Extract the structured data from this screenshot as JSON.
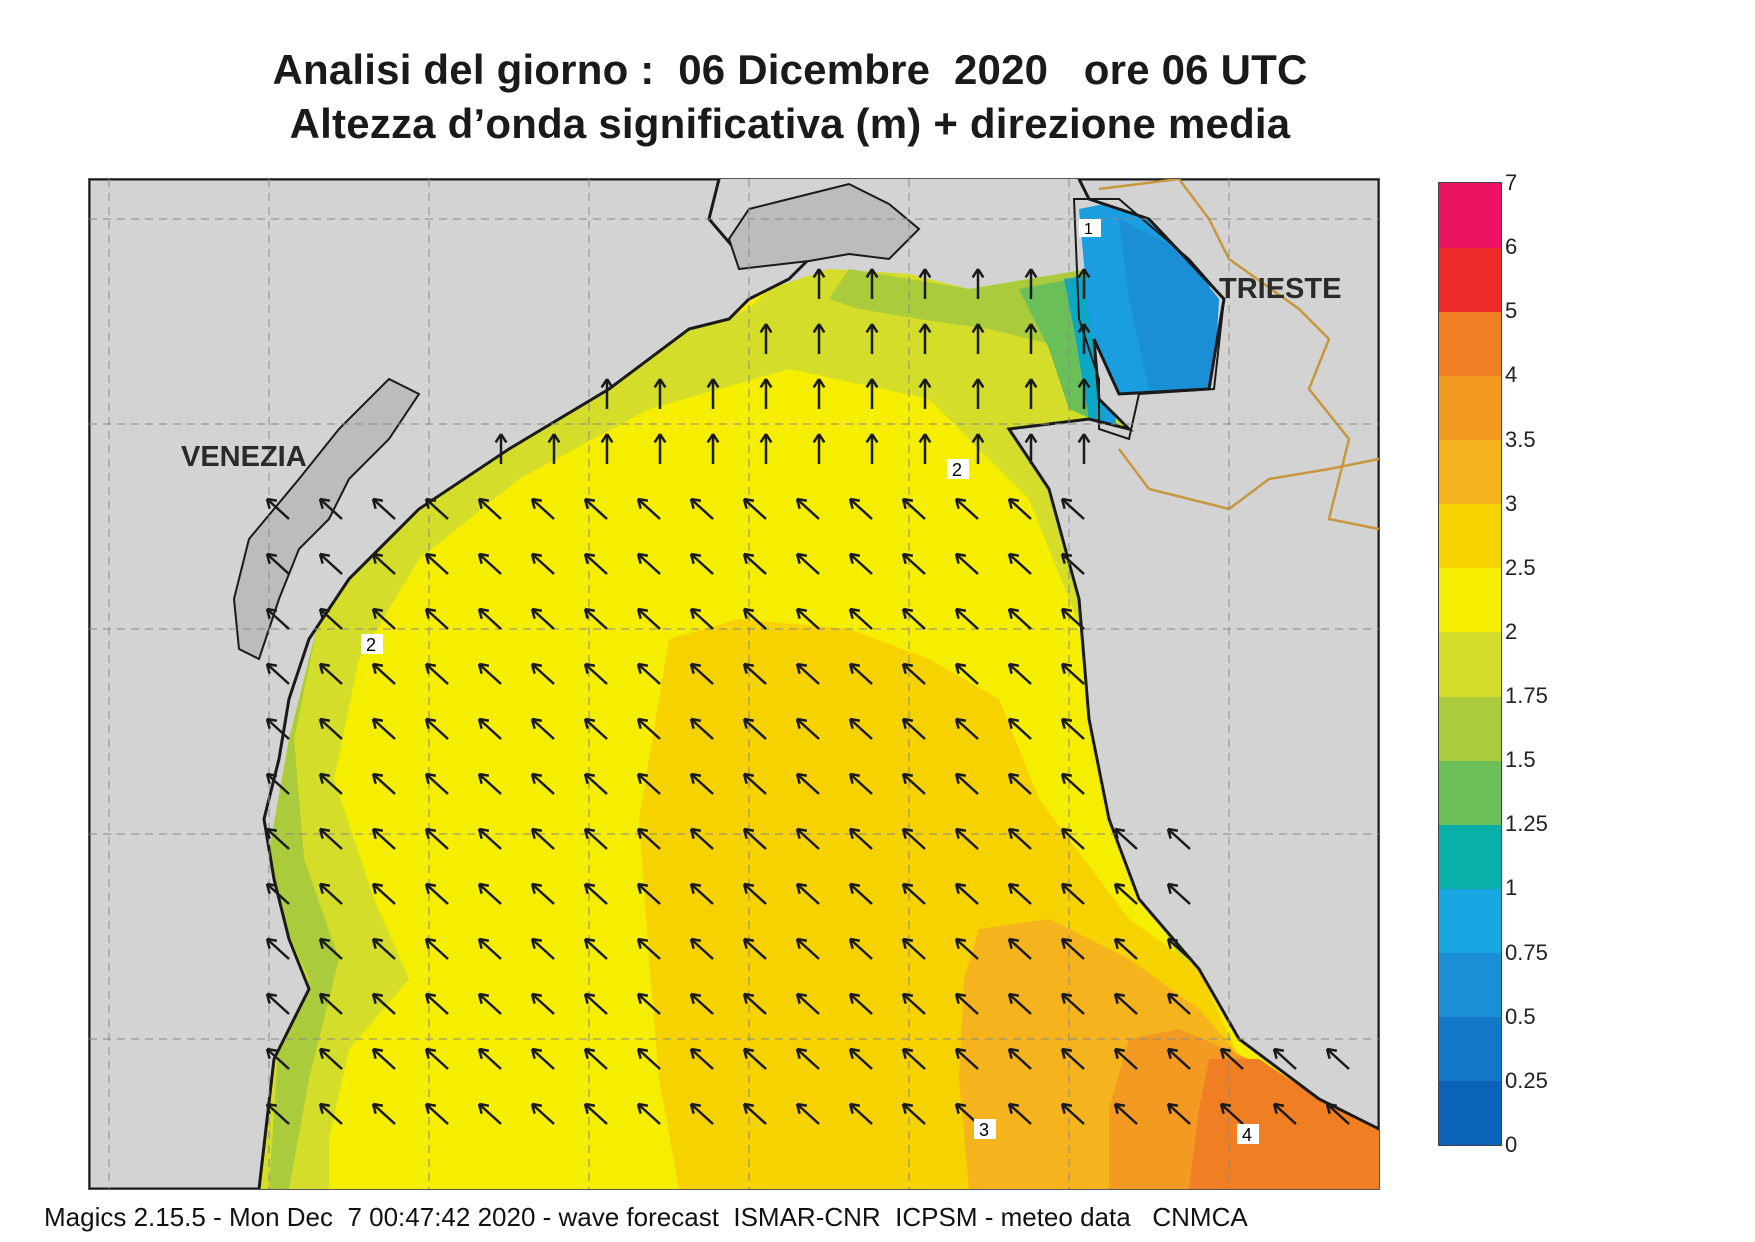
{
  "header": {
    "line1": "Analisi del giorno :  06 Dicembre  2020   ore 06 UTC",
    "line2": "Altezza d’onda significativa (m) + direzione media"
  },
  "map": {
    "labels": {
      "venezia": "VENEZIA",
      "trieste": "TRIESTE"
    },
    "contour_labels": [
      "1",
      "2",
      "2",
      "2",
      "3",
      "4"
    ],
    "colors": {
      "land": "#d3d3d3",
      "coast": "#1a1a1a",
      "border": "#c8963c",
      "h_0_5": "#1a8fd6",
      "h_0_75": "#1a9ee0",
      "h_1": "#0aa8c4",
      "h_1_25": "#6abf58",
      "h_1_5": "#a9cb3c",
      "h_1_75": "#d3dd2a",
      "h_2": "#f6ee00",
      "h_2_5": "#f6d200",
      "h_3": "#f5b41e",
      "h_3_5": "#f39a22",
      "h_4": "#f07f24"
    },
    "wave_direction": "north-west"
  },
  "legend": {
    "unit": "m",
    "ticks": [
      "0",
      "0.25",
      "0.5",
      "0.75",
      "1",
      "1.25",
      "1.5",
      "1.75",
      "2",
      "2.5",
      "3",
      "3.5",
      "4",
      "5",
      "6",
      "7"
    ],
    "band_colors": [
      "#0a63b8",
      "#1478c8",
      "#1a8fd6",
      "#1aa5e3",
      "#0ab0a8",
      "#6abf58",
      "#a9cb3c",
      "#d3dd2a",
      "#f6ee00",
      "#f6d200",
      "#f5b41e",
      "#f39a22",
      "#f07f24",
      "#ee2a28",
      "#ea1463"
    ]
  },
  "footer": {
    "text": "Magics 2.15.5 - Mon Dec  7 00:47:42 2020 - wave forecast  ISMAR-CNR  ICPSM - meteo data   CNMCA"
  }
}
